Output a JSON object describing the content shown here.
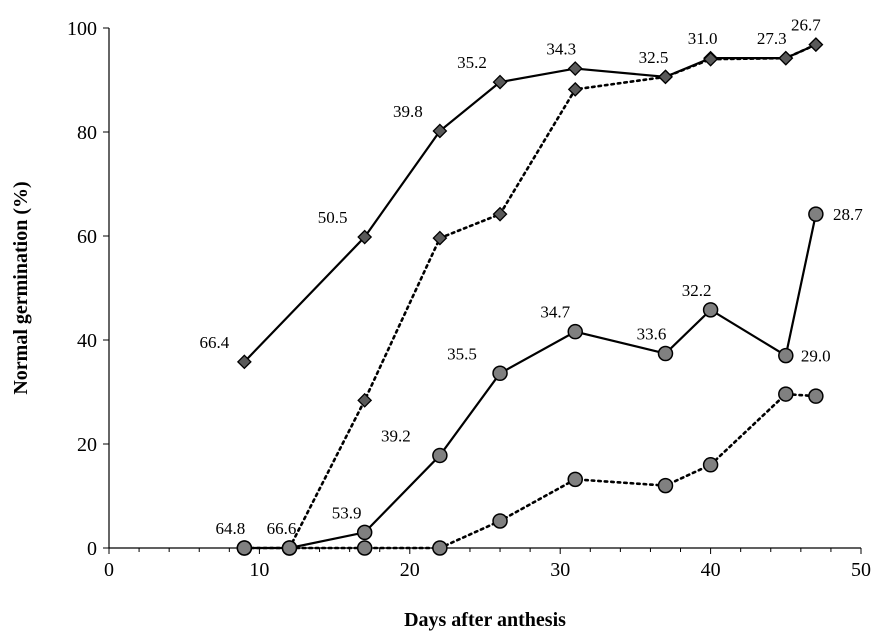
{
  "chart_data": {
    "type": "line",
    "title": "",
    "xlabel": "Days after anthesis",
    "ylabel": "Normal germination (%)",
    "xlim": [
      0,
      50
    ],
    "ylim": [
      0,
      100
    ],
    "xticks": [
      "0",
      "10",
      "20",
      "30",
      "40",
      "50"
    ],
    "yticks": [
      "0",
      "20",
      "40",
      "60",
      "80",
      "100"
    ],
    "grid": false,
    "legend": "none",
    "series": [
      {
        "marker": "diamond",
        "line_style": "solid",
        "color": "#595959",
        "x": [
          9,
          17,
          22,
          26,
          31,
          37,
          40,
          45,
          47
        ],
        "y": [
          35.8,
          59.8,
          80.2,
          89.6,
          92.2,
          90.6,
          94.2,
          94.2,
          96.8
        ],
        "point_labels": [
          "66.4",
          "50.5",
          "39.8",
          "35.2",
          "34.3",
          "32.5",
          "31.0",
          "27.3",
          "26.7"
        ]
      },
      {
        "marker": "diamond",
        "line_style": "dotted",
        "color": "#595959",
        "x": [
          12,
          17,
          22,
          26,
          31,
          37,
          40,
          45,
          47
        ],
        "y": [
          0,
          28.4,
          59.6,
          64.2,
          88.2,
          90.6,
          94.0,
          94.2,
          96.8
        ]
      },
      {
        "marker": "circle",
        "line_style": "solid",
        "color": "#808080",
        "x": [
          9,
          12,
          17,
          22,
          26,
          31,
          37,
          40,
          45,
          47
        ],
        "y": [
          0,
          0,
          3.0,
          17.8,
          33.6,
          41.6,
          37.4,
          45.8,
          37.0,
          64.2
        ],
        "point_labels": [
          "64.8",
          "66.6",
          "53.9",
          "39.2",
          "35.5",
          "34.7",
          "33.6",
          "32.2",
          "29.0",
          "28.7"
        ]
      },
      {
        "marker": "circle",
        "line_style": "dotted",
        "color": "#808080",
        "x": [
          9,
          12,
          17,
          22,
          26,
          31,
          37,
          40,
          45,
          47
        ],
        "y": [
          0,
          0,
          0,
          0,
          5.2,
          13.2,
          12.0,
          16.0,
          29.6,
          29.2
        ]
      }
    ]
  }
}
